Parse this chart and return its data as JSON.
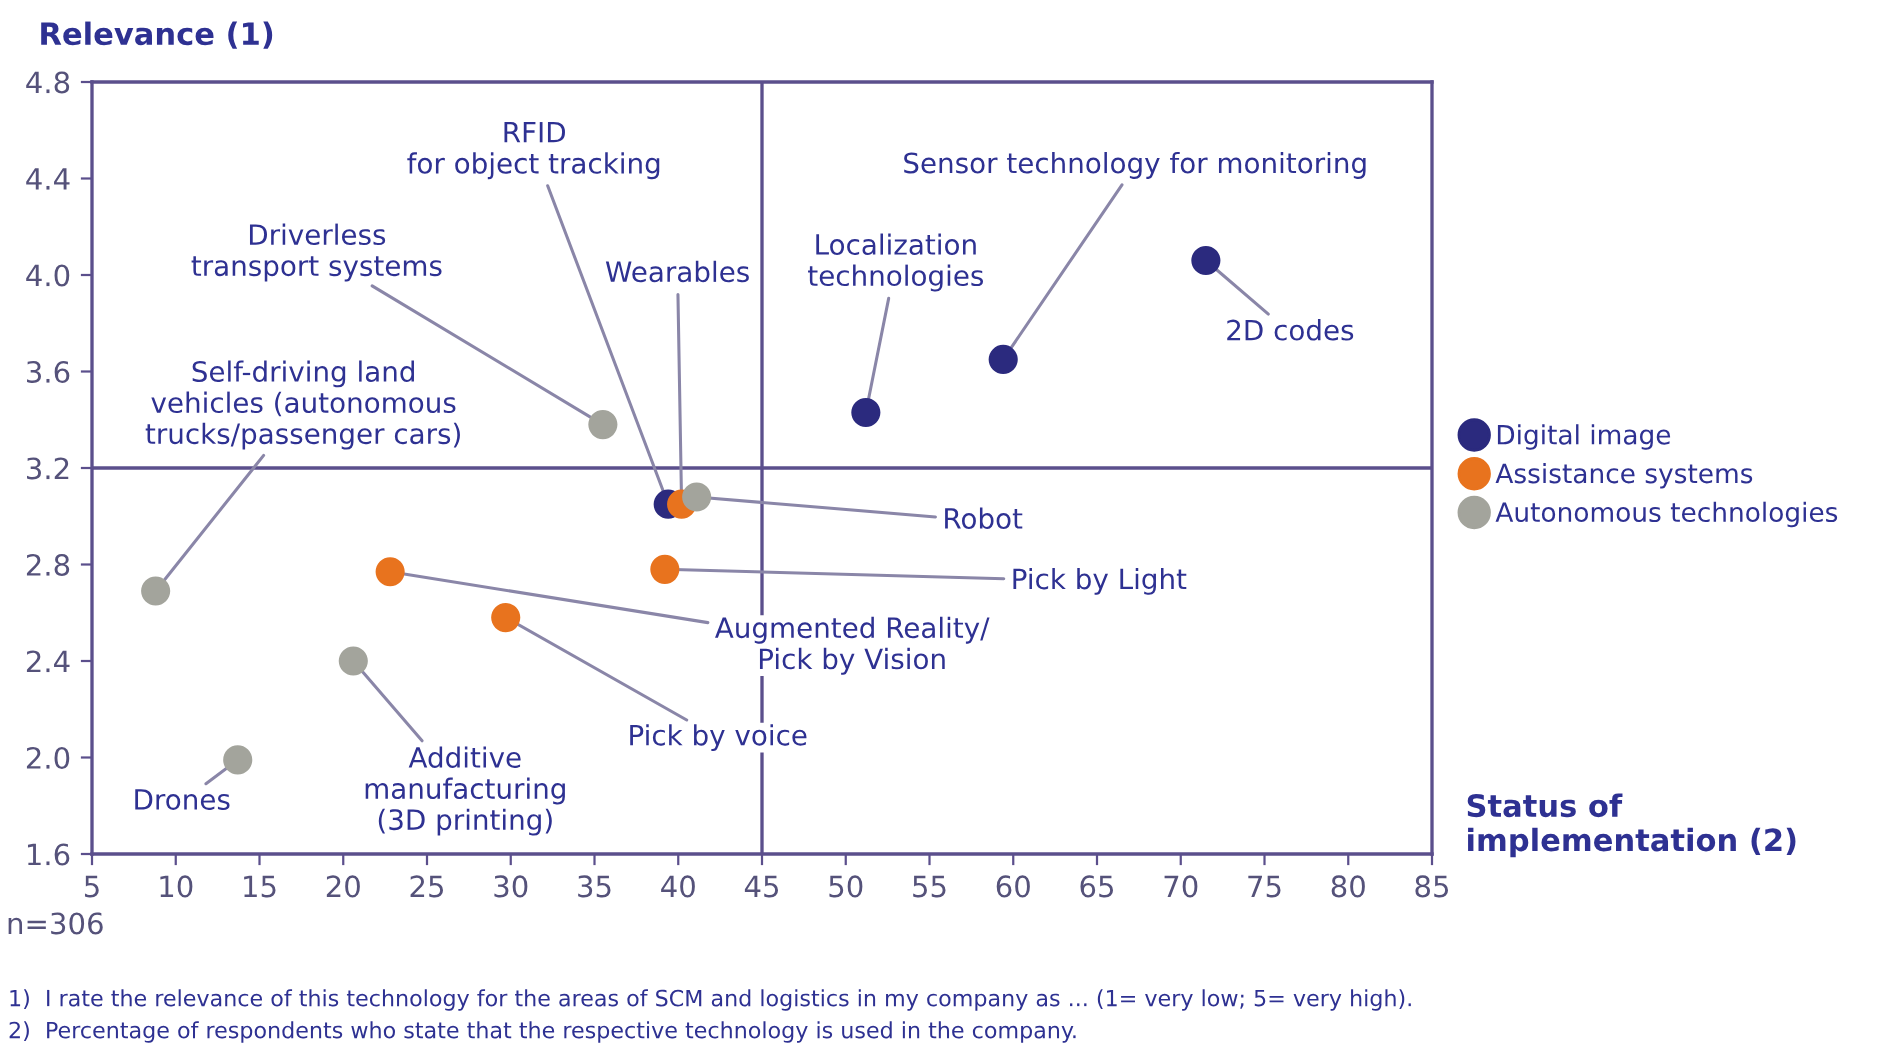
{
  "chart_data": {
    "type": "scatter",
    "ylabel": "Relevance (1)",
    "xlabel": "Status of\nimplementation (2)",
    "xlim": [
      5,
      85
    ],
    "xticks": [
      5,
      10,
      15,
      20,
      25,
      30,
      35,
      40,
      45,
      50,
      55,
      60,
      65,
      70,
      75,
      80,
      85
    ],
    "ylim": [
      1.6,
      4.8
    ],
    "yticks": [
      1.6,
      {
        "value": 2,
        "label": "2.0"
      },
      2.4,
      2.8,
      3.2,
      3.6,
      {
        "value": 4,
        "label": "4.0"
      },
      4.4,
      4.8
    ],
    "grid": false,
    "legend": "right",
    "marker": "circle",
    "series": [
      {
        "name": "Digital image",
        "color": "#2b2a7e",
        "x": [
          39.4,
          51.2,
          59.4,
          71.5
        ],
        "values": [
          3.05,
          3.43,
          3.65,
          4.06
        ]
      },
      {
        "name": "Assistance systems",
        "color": "#e8731e",
        "x": [
          40.2,
          22.8,
          29.7,
          39.2
        ],
        "values": [
          3.05,
          2.77,
          2.58,
          2.78
        ]
      },
      {
        "name": "Autonomous technologies",
        "color": "#a3a49c",
        "x": [
          8.8,
          13.7,
          20.6,
          35.5,
          41.1
        ],
        "values": [
          2.69,
          1.99,
          2.4,
          3.38,
          3.08
        ]
      }
    ],
    "ref_lines": [
      {
        "axis": "x",
        "value": 45,
        "color": "#5b4f8c"
      },
      {
        "axis": "y",
        "value": 3.2,
        "color": "#5b4f8c"
      }
    ],
    "annotations": [
      {
        "text": "Self-driving land\nvehicles (autonomous\ntrucks/passenger cars)",
        "x": 8.8,
        "y": 2.69
      },
      {
        "text": "Drones",
        "x": 13.7,
        "y": 1.99
      },
      {
        "text": "Additive\nmanufacturing\n(3D printing)",
        "x": 20.6,
        "y": 2.4
      },
      {
        "text": "Driverless\ntransport systems",
        "x": 35.5,
        "y": 3.38
      },
      {
        "text": "RFID\nfor object tracking",
        "x": 39.4,
        "y": 3.05
      },
      {
        "text": "Wearables",
        "x": 40.2,
        "y": 3.05
      },
      {
        "text": "Robot",
        "x": 41.1,
        "y": 3.08
      },
      {
        "text": "Augmented Reality/\nPick by Vision",
        "x": 22.8,
        "y": 2.77
      },
      {
        "text": "Pick by voice",
        "x": 29.7,
        "y": 2.58
      },
      {
        "text": "Pick by Light",
        "x": 39.2,
        "y": 2.78
      },
      {
        "text": "Localization\ntechnologies",
        "x": 51.2,
        "y": 3.43
      },
      {
        "text": "Sensor technology for monitoring",
        "x": 59.4,
        "y": 3.65
      },
      {
        "text": "2D codes",
        "x": 71.5,
        "y": 4.06
      },
      "n=306",
      "1)  I rate the relevance of this technology for the areas of SCM and logistics in my company as ... (1= very low; 5= very high).",
      "2)  Percentage of respondents who state that the respective technology is used in the company."
    ]
  }
}
